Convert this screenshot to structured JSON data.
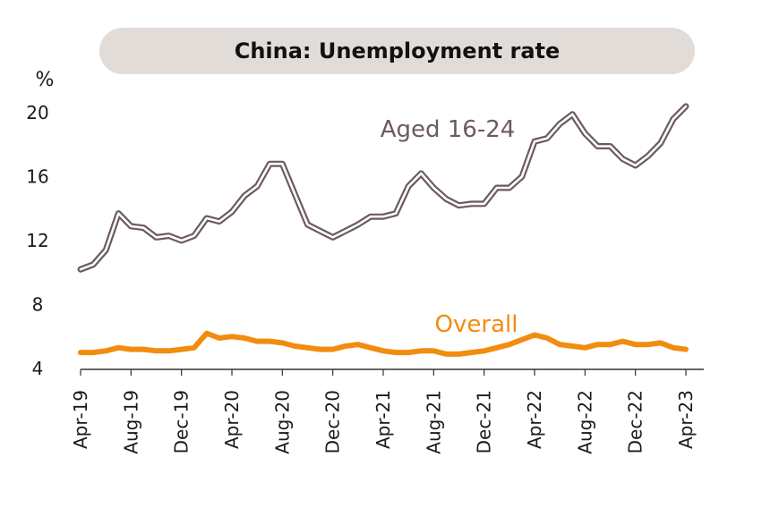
{
  "chart_data": {
    "type": "line",
    "title": "China: Unemployment rate",
    "ylabel": "%",
    "xlabel": "",
    "ylim": [
      4,
      20
    ],
    "yticks": [
      "4",
      "8",
      "12",
      "16",
      "20"
    ],
    "xtick_labels": [
      "Apr-19",
      "Aug-19",
      "Dec-19",
      "Apr-20",
      "Aug-20",
      "Dec-20",
      "Apr-21",
      "Aug-21",
      "Dec-21",
      "Apr-22",
      "Aug-22",
      "Dec-22",
      "Apr-23"
    ],
    "x": [
      "Apr-19",
      "May-19",
      "Jun-19",
      "Jul-19",
      "Aug-19",
      "Sep-19",
      "Oct-19",
      "Nov-19",
      "Dec-19",
      "Jan-20",
      "Feb-20",
      "Mar-20",
      "Apr-20",
      "May-20",
      "Jun-20",
      "Jul-20",
      "Aug-20",
      "Sep-20",
      "Oct-20",
      "Nov-20",
      "Dec-20",
      "Jan-21",
      "Feb-21",
      "Mar-21",
      "Apr-21",
      "May-21",
      "Jun-21",
      "Jul-21",
      "Aug-21",
      "Sep-21",
      "Oct-21",
      "Nov-21",
      "Dec-21",
      "Jan-22",
      "Feb-22",
      "Mar-22",
      "Apr-22",
      "May-22",
      "Jun-22",
      "Jul-22",
      "Aug-22",
      "Sep-22",
      "Oct-22",
      "Nov-22",
      "Dec-22",
      "Jan-23",
      "Feb-23",
      "Mar-23",
      "Apr-23"
    ],
    "grid": false,
    "series": [
      {
        "name": "Aged 16-24",
        "color": "#6b5b5b",
        "values": [
          10.2,
          10.5,
          11.4,
          13.7,
          12.9,
          12.8,
          12.2,
          12.3,
          12.0,
          12.3,
          13.4,
          13.2,
          13.8,
          14.8,
          15.4,
          16.8,
          16.8,
          14.9,
          13.0,
          12.6,
          12.2,
          12.6,
          13.0,
          13.5,
          13.5,
          13.7,
          15.4,
          16.2,
          15.3,
          14.6,
          14.2,
          14.3,
          14.3,
          15.3,
          15.3,
          16.0,
          18.2,
          18.4,
          19.3,
          19.9,
          18.7,
          17.9,
          17.9,
          17.1,
          16.7,
          17.3,
          18.1,
          19.6,
          20.4
        ]
      },
      {
        "name": "Overall",
        "color": "#f28c0f",
        "values": [
          5.0,
          5.0,
          5.1,
          5.3,
          5.2,
          5.2,
          5.1,
          5.1,
          5.2,
          5.3,
          6.2,
          5.9,
          6.0,
          5.9,
          5.7,
          5.7,
          5.6,
          5.4,
          5.3,
          5.2,
          5.2,
          5.4,
          5.5,
          5.3,
          5.1,
          5.0,
          5.0,
          5.1,
          5.1,
          4.9,
          4.9,
          5.0,
          5.1,
          5.3,
          5.5,
          5.8,
          6.1,
          5.9,
          5.5,
          5.4,
          5.3,
          5.5,
          5.5,
          5.7,
          5.5,
          5.5,
          5.6,
          5.3,
          5.2
        ]
      }
    ]
  }
}
